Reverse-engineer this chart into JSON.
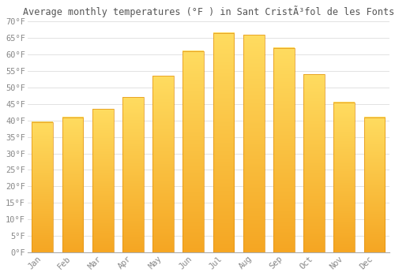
{
  "title": "Average monthly temperatures (°F ) in Sant CristÃ³fol de les Fonts",
  "months": [
    "Jan",
    "Feb",
    "Mar",
    "Apr",
    "May",
    "Jun",
    "Jul",
    "Aug",
    "Sep",
    "Oct",
    "Nov",
    "Dec"
  ],
  "values": [
    39.5,
    41.0,
    43.5,
    47.0,
    53.5,
    61.0,
    66.5,
    66.0,
    62.0,
    54.0,
    45.5,
    41.0
  ],
  "bar_color_bottom": "#F5A623",
  "bar_color_top": "#FFD966",
  "bar_edge_color": "#E09010",
  "background_color": "#FFFFFF",
  "plot_bg_color": "#FFFFFF",
  "grid_color": "#DDDDDD",
  "ylim": [
    0,
    70
  ],
  "yticks": [
    0,
    5,
    10,
    15,
    20,
    25,
    30,
    35,
    40,
    45,
    50,
    55,
    60,
    65,
    70
  ],
  "ytick_labels": [
    "0°F",
    "5°F",
    "10°F",
    "15°F",
    "20°F",
    "25°F",
    "30°F",
    "35°F",
    "40°F",
    "45°F",
    "50°F",
    "55°F",
    "60°F",
    "65°F",
    "70°F"
  ],
  "title_fontsize": 8.5,
  "tick_fontsize": 7.5,
  "title_color": "#555555",
  "tick_color": "#888888",
  "font_family": "monospace",
  "bar_width": 0.7
}
